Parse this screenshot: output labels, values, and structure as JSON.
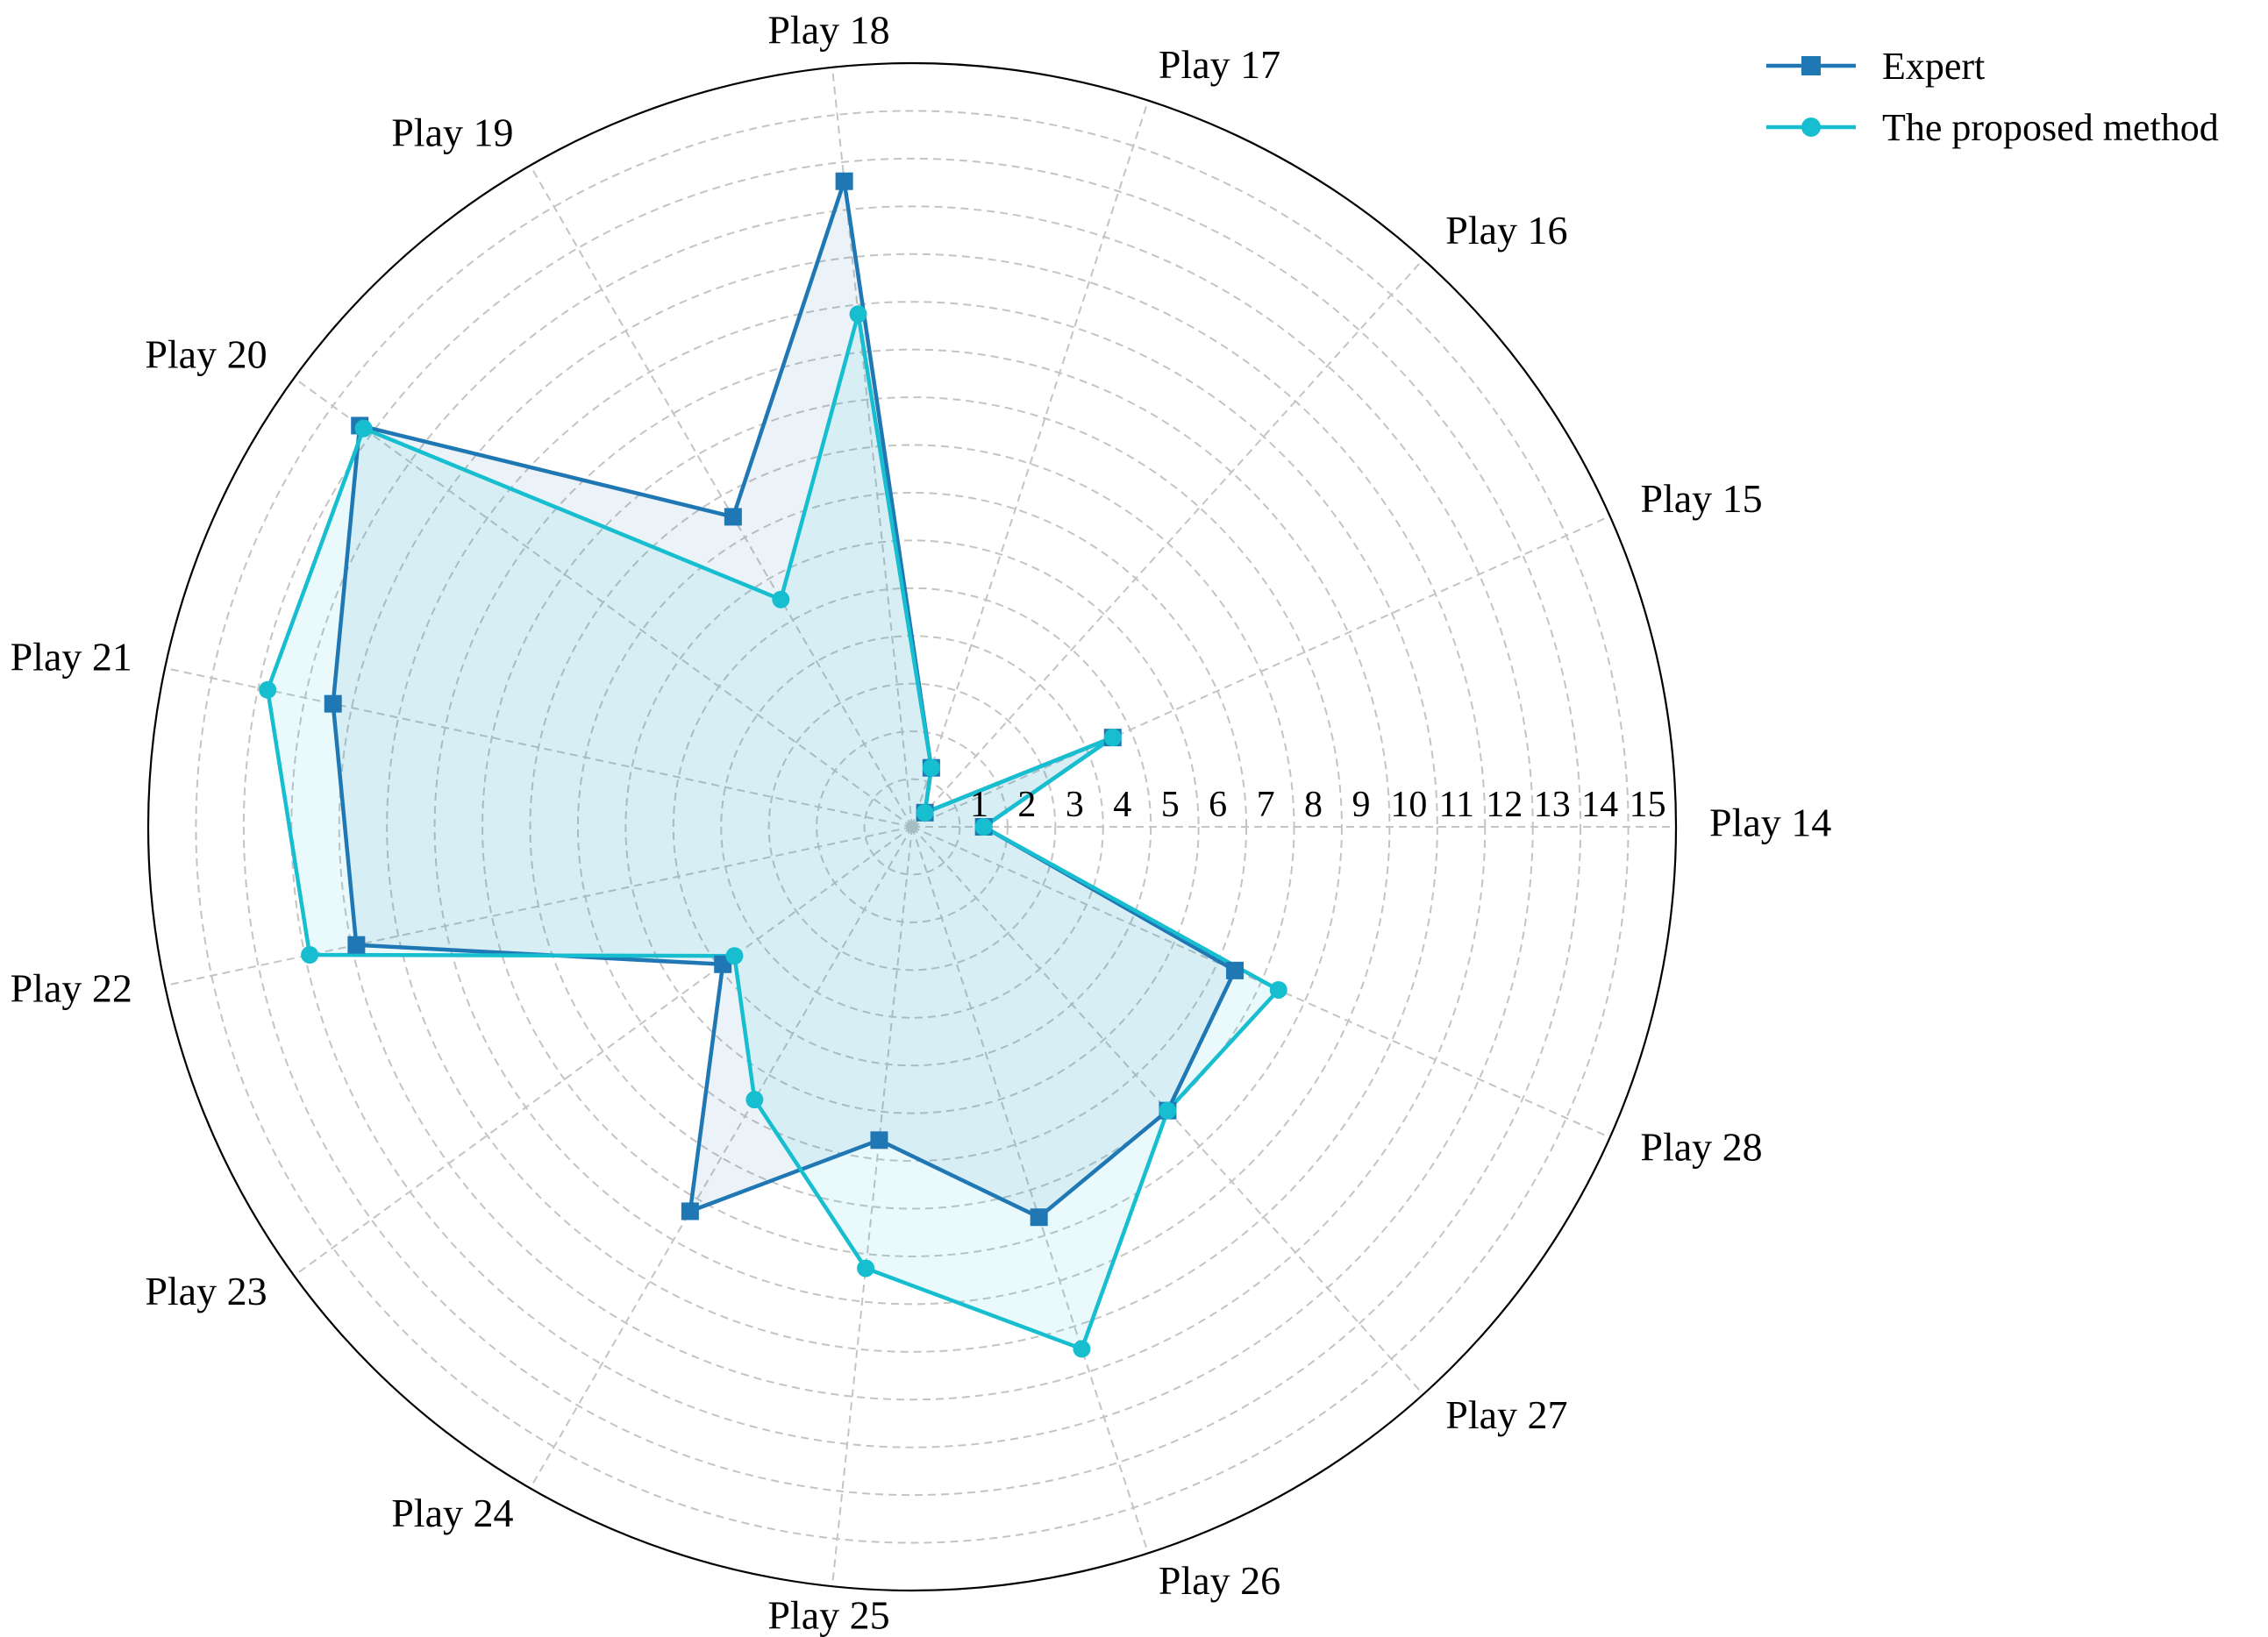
{
  "chart_data": {
    "type": "radar",
    "categories": [
      "Play 14",
      "Play 15",
      "Play 16",
      "Play 17",
      "Play 18",
      "Play 19",
      "Play 20",
      "Play 21",
      "Play 22",
      "Play 23",
      "Play 24",
      "Play 25",
      "Play 26",
      "Play 27",
      "Play 28"
    ],
    "radial_ticks": [
      "1",
      "2",
      "3",
      "4",
      "5",
      "6",
      "7",
      "8",
      "9",
      "10",
      "11",
      "12",
      "13",
      "14",
      "15"
    ],
    "rlim": [
      0,
      16
    ],
    "grid": true,
    "legend_position": "top-right",
    "series": [
      {
        "name": "Expert",
        "values": [
          1.5,
          4.6,
          0.4,
          1.3,
          13.6,
          7.5,
          14.3,
          12.4,
          11.9,
          4.9,
          9.3,
          6.6,
          8.6,
          8.0,
          7.4
        ],
        "color": "#1f77b4",
        "marker": "square"
      },
      {
        "name": "The proposed method",
        "values": [
          1.5,
          4.6,
          0.4,
          1.3,
          10.8,
          5.5,
          14.2,
          13.8,
          12.9,
          4.6,
          6.6,
          9.3,
          11.5,
          8.0,
          8.4
        ],
        "color": "#17becf",
        "marker": "circle"
      }
    ]
  }
}
